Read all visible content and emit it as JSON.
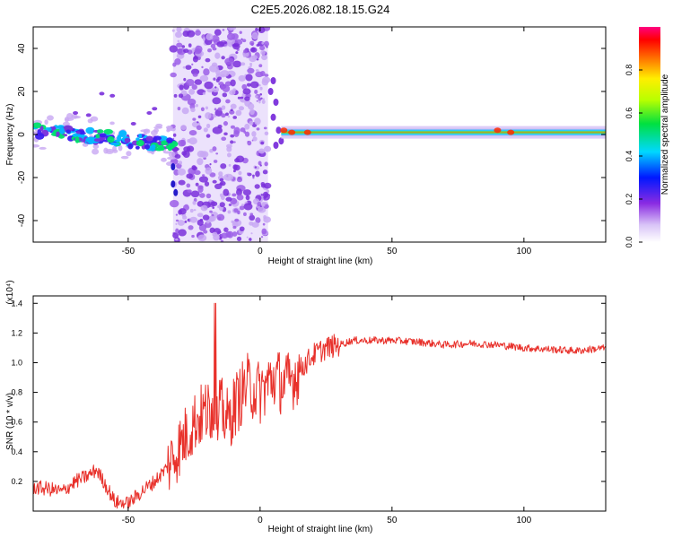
{
  "figure_title": "C2E5.2026.082.18.15.G24",
  "chart_data": [
    {
      "type": "heatmap",
      "xlabel": "Height of straight line (km)",
      "ylabel": "Frequency (Hz)",
      "xlim": [
        -86,
        131
      ],
      "ylim": [
        -50,
        50
      ],
      "x_ticks": [
        -50,
        0,
        50,
        100
      ],
      "y_ticks": [
        -40,
        -20,
        0,
        20,
        40
      ],
      "colorbar": {
        "label": "Normalized spectral amplitude",
        "range": [
          0,
          1
        ],
        "ticks": [
          "0.0",
          "0.2",
          "0.4",
          "0.6",
          "0.8"
        ],
        "colormap": "rainbow (white-violet to magenta)"
      },
      "grid": false,
      "features": [
        {
          "segment": "descending tone",
          "x_range": [
            -86,
            -32
          ],
          "y_start": 2,
          "y_end": -5,
          "amplitude": 0.3
        },
        {
          "segment": "broadband noise",
          "x_range": [
            -33,
            3
          ],
          "y_range": [
            -50,
            50
          ],
          "amplitude": 0.15
        },
        {
          "segment": "steady tone",
          "x_range": [
            8,
            131
          ],
          "y": 1,
          "amplitude": 0.8
        }
      ]
    },
    {
      "type": "line",
      "xlabel": "Height of straight line (km)",
      "ylabel": "SNR (10 * v/v)",
      "y_scale_label": "(x10⁴)",
      "xlim": [
        -86,
        131
      ],
      "ylim": [
        0,
        1.45
      ],
      "x_ticks": [
        -50,
        0,
        50,
        100
      ],
      "y_ticks": [
        0.2,
        0.4,
        0.6,
        0.8,
        1.0,
        1.2,
        1.4
      ],
      "grid": false,
      "series": [
        {
          "color": "#e8302a",
          "x": [
            -86,
            -80,
            -75,
            -70,
            -65,
            -62,
            -58,
            -55,
            -50,
            -45,
            -40,
            -35,
            -30,
            -25,
            -20,
            -15,
            -12,
            -10,
            -5,
            0,
            5,
            10,
            15,
            20,
            25,
            30,
            35,
            40,
            50,
            60,
            70,
            80,
            90,
            100,
            110,
            120,
            131
          ],
          "y": [
            0.16,
            0.15,
            0.13,
            0.2,
            0.24,
            0.28,
            0.16,
            0.06,
            0.05,
            0.13,
            0.2,
            0.3,
            0.45,
            0.6,
            0.68,
            0.7,
            0.6,
            0.7,
            0.85,
            0.8,
            0.9,
            0.85,
            0.95,
            1.05,
            1.1,
            1.12,
            1.15,
            1.15,
            1.15,
            1.14,
            1.12,
            1.13,
            1.12,
            1.1,
            1.09,
            1.08,
            1.1
          ]
        }
      ]
    }
  ]
}
